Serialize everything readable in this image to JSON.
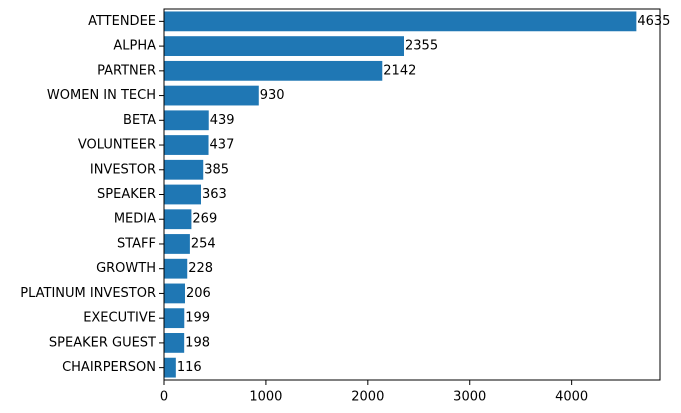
{
  "chart_data": {
    "type": "bar",
    "orientation": "horizontal",
    "categories": [
      "ATTENDEE",
      "ALPHA",
      "PARTNER",
      "WOMEN IN TECH",
      "BETA",
      "VOLUNTEER",
      "INVESTOR",
      "SPEAKER",
      "MEDIA",
      "STAFF",
      "GROWTH",
      "PLATINUM INVESTOR",
      "EXECUTIVE",
      "SPEAKER GUEST",
      "CHAIRPERSON"
    ],
    "values": [
      4635,
      2355,
      2142,
      930,
      439,
      437,
      385,
      363,
      269,
      254,
      228,
      206,
      199,
      198,
      116
    ],
    "color": "#1f77b4",
    "xlim": [
      0,
      4867
    ],
    "xticks": [
      0,
      1000,
      2000,
      3000,
      4000
    ],
    "grid": false
  }
}
